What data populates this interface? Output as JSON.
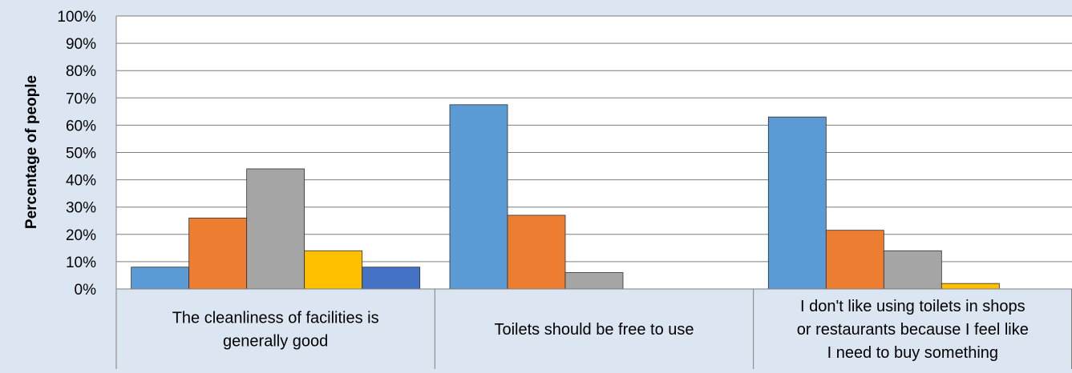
{
  "chart_data": {
    "type": "bar",
    "title": "",
    "xlabel": "",
    "ylabel": "Percentage of people",
    "ylim": [
      0,
      100
    ],
    "yticks": [
      "0%",
      "10%",
      "20%",
      "30%",
      "40%",
      "50%",
      "60%",
      "70%",
      "80%",
      "90%",
      "100%"
    ],
    "categories": [
      "The cleanliness of facilities is generally good",
      "Toilets should be free to use",
      "I don't like using toilets in shops or restaurants because I feel like I need to buy something"
    ],
    "category_lines": [
      [
        "The cleanliness of facilities is",
        "generally good"
      ],
      [
        "Toilets should be free to use"
      ],
      [
        "I don't like using toilets in shops",
        "or restaurants because I feel like",
        "I need to buy something"
      ]
    ],
    "series": [
      {
        "color": "#5b9bd5",
        "values": [
          8,
          67.5,
          63
        ]
      },
      {
        "color": "#ed7d31",
        "values": [
          26,
          27,
          21.5
        ]
      },
      {
        "color": "#a5a5a5",
        "values": [
          44,
          6,
          14
        ]
      },
      {
        "color": "#ffc000",
        "values": [
          14,
          0,
          2
        ]
      },
      {
        "color": "#4472c4",
        "values": [
          8,
          0,
          0
        ]
      }
    ],
    "grid": true,
    "legend": "none",
    "colors": {
      "background": "#dce6f2",
      "plot_area": "#ffffff",
      "gridline": "#7f7f7f",
      "text": "#000000"
    }
  }
}
